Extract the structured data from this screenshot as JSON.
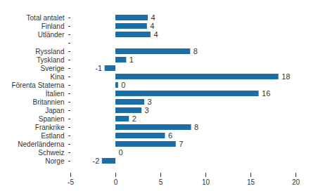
{
  "chart_data": {
    "type": "bar",
    "orientation": "horizontal",
    "categories": [
      "Total antalet",
      "Finland",
      "Utländer",
      null,
      "Ryssland",
      "Tyskland",
      "Sverige",
      "Kina",
      "Förenta Staterna",
      "Italien",
      "Britannien",
      "Japan",
      "Spanien",
      "Frankrike",
      "Estland",
      "Nederländerna",
      "Schweiz",
      "Norge"
    ],
    "values": [
      3.6,
      3.5,
      3.9,
      null,
      8.3,
      1.2,
      -1.2,
      18.1,
      0.3,
      15.9,
      3.2,
      2.9,
      1.5,
      8.4,
      5.5,
      6.7,
      0.0,
      -1.5
    ],
    "value_labels": [
      "4",
      "4",
      "4",
      null,
      "8",
      "1",
      "-1",
      "18",
      "0",
      "16",
      "3",
      "3",
      "2",
      "8",
      "6",
      "7",
      "0",
      "-2"
    ],
    "data_labels": true,
    "color": "#1b6ea6",
    "xlim": [
      -5,
      20
    ],
    "xticks": [
      -5,
      0,
      5,
      10,
      15,
      20
    ],
    "grid": false
  }
}
